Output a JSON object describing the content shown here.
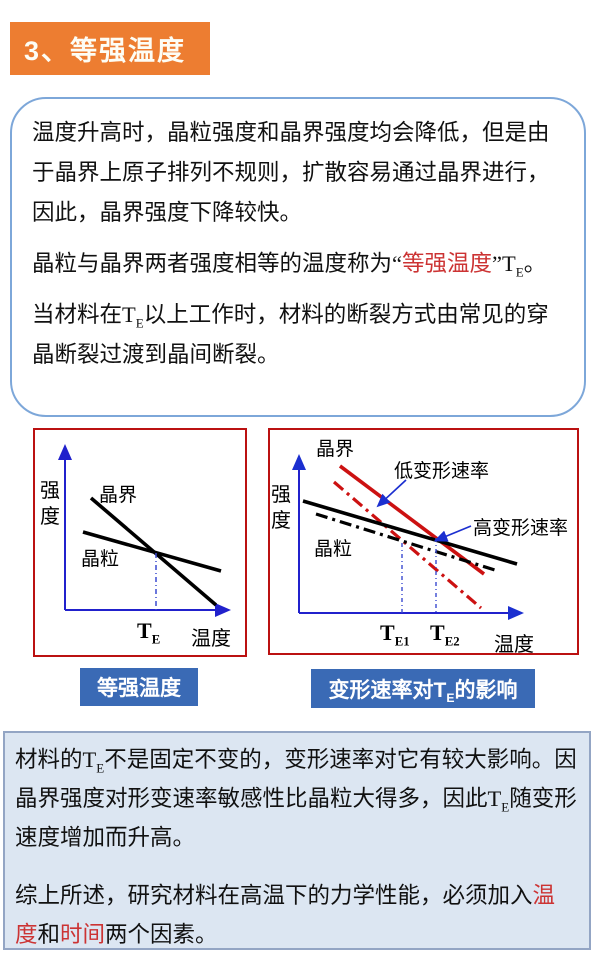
{
  "header": {
    "title": "3、等强温度"
  },
  "colors": {
    "accent_orange": "#ed7d31",
    "caption_blue": "#3a6ab5",
    "highlight_red": "#cc3333",
    "chart_frame_red": "#bb1111",
    "axis_blue": "#2121cc",
    "line_red": "#cc1111",
    "bottom_box_fill": "#dce6f2"
  },
  "intro_box": {
    "p1": "温度升高时，晶粒强度和晶界强度均会降低，但是由于晶界上原子排列不规则，扩散容易通过晶界进行，因此，晶界强度下降较快。",
    "p2_segments": [
      {
        "t": "晶粒与晶界两者强度相等的温度称为“"
      },
      {
        "t": "等强温度",
        "red": true
      },
      {
        "t": "”T"
      },
      {
        "t": "E",
        "sub": true
      },
      {
        "t": "。"
      }
    ],
    "p3_segments": [
      {
        "t": "当材料在T"
      },
      {
        "t": "E",
        "sub": true
      },
      {
        "t": "以上工作时，材料的断裂方式由常见的穿晶断裂过渡到晶间断裂。"
      }
    ]
  },
  "chart_data": [
    {
      "type": "line",
      "title": "等强温度",
      "xlabel": "温度",
      "ylabel": "强度",
      "series": [
        {
          "name": "晶界",
          "style": "solid black, steep negative slope"
        },
        {
          "name": "晶粒",
          "style": "solid black, shallow negative slope"
        }
      ],
      "annotations": [
        "两线交点处温度为等强温度",
        "交点向下作蓝色点划线至横轴"
      ],
      "x_ticks": [
        "TE"
      ]
    },
    {
      "type": "line",
      "title": "变形速率对TE的影响",
      "xlabel": "温度",
      "ylabel": "强度",
      "series": [
        {
          "name": "晶界-高变形速率",
          "style": "solid red, steep"
        },
        {
          "name": "晶界-低变形速率",
          "style": "dash-dot red, steep"
        },
        {
          "name": "晶粒-高变形速率",
          "style": "solid black, shallow"
        },
        {
          "name": "晶粒-低变形速率",
          "style": "dash-dot black, shallow"
        }
      ],
      "annotations": [
        "低变形速率",
        "高变形速率",
        "交点分别对应TE1与TE2"
      ],
      "x_ticks": [
        "TE1",
        "TE2"
      ]
    }
  ],
  "charts": {
    "left": {
      "ylabel": "强度",
      "xlabel": "温度",
      "label_grain_boundary": "晶界",
      "label_grain": "晶粒",
      "tick_segments": [
        {
          "t": "T"
        },
        {
          "t": "E",
          "sub": true
        }
      ],
      "caption": "等强温度"
    },
    "right": {
      "ylabel": "强度",
      "xlabel": "温度",
      "label_grain_boundary": "晶界",
      "label_grain": "晶粒",
      "label_low_rate": "低变形速率",
      "label_high_rate": "高变形速率",
      "tick1_segments": [
        {
          "t": "T"
        },
        {
          "t": "E1",
          "sub": true
        }
      ],
      "tick2_segments": [
        {
          "t": "T"
        },
        {
          "t": "E2",
          "sub": true
        }
      ],
      "caption_segments": [
        {
          "t": "变形速率对T"
        },
        {
          "t": "E",
          "sub": true
        },
        {
          "t": "的影响"
        }
      ]
    }
  },
  "bottom_box": {
    "p1_segments": [
      {
        "t": "材料的T"
      },
      {
        "t": "E",
        "sub": true
      },
      {
        "t": "不是固定不变的，变形速率对它有较大影响。因晶界强度对形变速率敏感性比晶粒大得多，因此T"
      },
      {
        "t": "E",
        "sub": true
      },
      {
        "t": "随变形速度增加而升高。"
      }
    ],
    "p2_segments": [
      {
        "t": "综上所述，研究材料在高温下的力学性能，必须加入"
      },
      {
        "t": "温度",
        "red": true
      },
      {
        "t": "和"
      },
      {
        "t": "时间",
        "red": true
      },
      {
        "t": "两个因素。"
      }
    ]
  }
}
